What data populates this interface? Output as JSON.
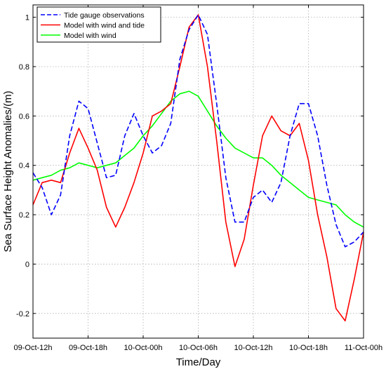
{
  "chart_data": {
    "type": "line",
    "title": "",
    "xlabel": "Time/Day",
    "ylabel": "Sea Surface Height Anomalies/(m)",
    "x_ticks": [
      "09-Oct-12h",
      "09-Oct-18h",
      "10-Oct-00h",
      "10-Oct-06h",
      "10-Oct-12h",
      "10-Oct-18h",
      "11-Oct-00h"
    ],
    "y_ticks": [
      "-0.2",
      "0",
      "0.2",
      "0.4",
      "0.6",
      "0.8",
      "1"
    ],
    "xlim": [
      0,
      36
    ],
    "ylim": [
      -0.3,
      1.05
    ],
    "grid": true,
    "legend_position": "top-left",
    "series": [
      {
        "name": "Tide gauge observations",
        "color": "#0000ff",
        "dash": "dashed",
        "x": [
          0,
          1,
          2,
          3,
          4,
          5,
          6,
          7,
          8,
          9,
          10,
          11,
          12,
          13,
          14,
          15,
          16,
          17,
          18,
          19,
          20,
          21,
          22,
          23,
          24,
          25,
          26,
          27,
          28,
          29,
          30,
          31,
          32,
          33,
          34,
          35,
          36
        ],
        "values": [
          0.37,
          0.31,
          0.2,
          0.28,
          0.52,
          0.66,
          0.63,
          0.49,
          0.35,
          0.36,
          0.52,
          0.61,
          0.52,
          0.45,
          0.48,
          0.57,
          0.83,
          0.95,
          1.01,
          0.93,
          0.65,
          0.35,
          0.17,
          0.17,
          0.27,
          0.3,
          0.25,
          0.33,
          0.52,
          0.65,
          0.65,
          0.52,
          0.32,
          0.16,
          0.07,
          0.09,
          0.13
        ]
      },
      {
        "name": "Model with wind and tide",
        "color": "#ff0000",
        "dash": "solid",
        "x": [
          0,
          1,
          2,
          3,
          4,
          5,
          6,
          7,
          8,
          9,
          10,
          11,
          12,
          13,
          14,
          15,
          16,
          17,
          18,
          19,
          20,
          21,
          22,
          23,
          24,
          25,
          26,
          27,
          28,
          29,
          30,
          31,
          32,
          33,
          34,
          35,
          36
        ],
        "values": [
          0.24,
          0.33,
          0.34,
          0.33,
          0.45,
          0.55,
          0.47,
          0.38,
          0.23,
          0.15,
          0.23,
          0.33,
          0.45,
          0.6,
          0.62,
          0.65,
          0.8,
          0.96,
          1.01,
          0.8,
          0.5,
          0.17,
          -0.01,
          0.1,
          0.32,
          0.52,
          0.6,
          0.54,
          0.52,
          0.57,
          0.42,
          0.2,
          0.03,
          -0.18,
          -0.23,
          -0.06,
          0.13
        ]
      },
      {
        "name": "Model with wind",
        "color": "#00ff00",
        "dash": "solid",
        "x": [
          0,
          1,
          2,
          3,
          4,
          5,
          6,
          7,
          8,
          9,
          10,
          11,
          12,
          13,
          14,
          15,
          16,
          17,
          18,
          19,
          20,
          21,
          22,
          23,
          24,
          25,
          26,
          27,
          28,
          29,
          30,
          31,
          32,
          33,
          34,
          35,
          36
        ],
        "values": [
          0.34,
          0.35,
          0.36,
          0.38,
          0.39,
          0.41,
          0.4,
          0.39,
          0.4,
          0.41,
          0.44,
          0.47,
          0.52,
          0.56,
          0.61,
          0.66,
          0.69,
          0.7,
          0.68,
          0.62,
          0.56,
          0.51,
          0.47,
          0.45,
          0.43,
          0.43,
          0.4,
          0.36,
          0.33,
          0.3,
          0.27,
          0.26,
          0.25,
          0.24,
          0.2,
          0.17,
          0.15
        ]
      }
    ]
  }
}
